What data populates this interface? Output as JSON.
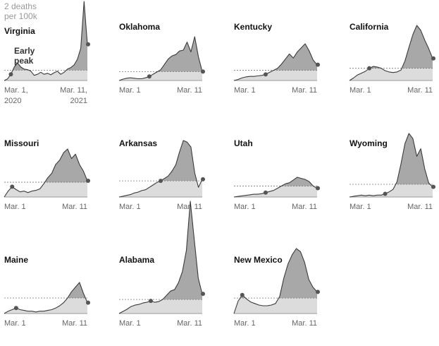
{
  "chart_data": {
    "type": "area",
    "annotations": {
      "threshold_label": [
        "2 deaths",
        "per 100k"
      ],
      "early_peak_label": [
        "Early",
        "peak"
      ]
    },
    "colors": {
      "area": "#dcdcdc",
      "above_threshold": "#a8a8a8",
      "line": "#3a3a3a",
      "marker": "#555555",
      "threshold": "#777777",
      "baseline": "#9a9a9a"
    },
    "panels": [
      {
        "state": "Virginia",
        "x_start": "Mar. 1, 2020",
        "x_end": "Mar. 11, 2021",
        "x_start_label": [
          "Mar. 1,",
          "2020"
        ],
        "x_end_label": [
          "Mar. 11,",
          "2021"
        ],
        "threshold": 2,
        "early_peak_index": 2,
        "values": [
          0,
          0.3,
          1.2,
          2.6,
          3.4,
          2.6,
          2.2,
          2.1,
          1.8,
          1.0,
          1.2,
          1.6,
          1.2,
          1.4,
          1.1,
          1.5,
          1.8,
          1.2,
          1.6,
          2.2,
          2.5,
          3.0,
          4.1,
          6.2,
          15.3,
          7.0
        ]
      },
      {
        "state": "Oklahoma",
        "x_start": "Mar. 1",
        "x_end": "Mar. 11",
        "x_start_label": [
          "Mar. 1"
        ],
        "x_end_label": [
          "Mar. 11"
        ],
        "threshold": 2,
        "early_peak_index": 8,
        "values": [
          0,
          0.3,
          0.5,
          0.6,
          0.5,
          0.4,
          0.4,
          0.6,
          0.9,
          1.4,
          1.9,
          2.4,
          3.6,
          4.8,
          5.5,
          5.8,
          6.6,
          6.8,
          8.6,
          6.4,
          9.8,
          5.3,
          2.0
        ]
      },
      {
        "state": "Kentucky",
        "x_start": "Mar. 1",
        "x_end": "Mar. 11",
        "x_start_label": [
          "Mar. 1"
        ],
        "x_end_label": [
          "Mar. 11"
        ],
        "threshold": 2,
        "early_peak_index": 8,
        "values": [
          0,
          0.2,
          0.5,
          0.7,
          0.8,
          0.8,
          0.9,
          1.0,
          1.2,
          1.6,
          2.0,
          2.4,
          3.2,
          4.2,
          5.2,
          4.4,
          5.6,
          6.4,
          7.2,
          5.8,
          4.0,
          3.1
        ]
      },
      {
        "state": "California",
        "x_start": "Mar. 1",
        "x_end": "Mar. 11",
        "x_start_label": [
          "Mar. 1"
        ],
        "x_end_label": [
          "Mar. 11"
        ],
        "threshold": 2,
        "early_peak_index": 5,
        "values": [
          0,
          0.4,
          0.9,
          1.2,
          1.5,
          2.0,
          2.3,
          2.2,
          2.0,
          1.6,
          1.4,
          1.3,
          1.4,
          1.7,
          3.2,
          5.4,
          7.5,
          9.0,
          8.2,
          6.6,
          5.2,
          3.6
        ]
      },
      {
        "state": "Missouri",
        "x_start": "Mar. 1",
        "x_end": "Mar. 11",
        "x_start_label": [
          "Mar. 1"
        ],
        "x_end_label": [
          "Mar. 11"
        ],
        "threshold": 2,
        "early_peak_index": 2,
        "values": [
          0,
          0.8,
          1.4,
          1.0,
          0.7,
          0.8,
          0.6,
          0.8,
          0.9,
          1.1,
          1.8,
          2.6,
          3.2,
          4.4,
          5.0,
          6.0,
          6.5,
          5.2,
          5.8,
          4.4,
          3.5,
          2.2
        ]
      },
      {
        "state": "Arkansas",
        "x_start": "Mar. 1",
        "x_end": "Mar. 11",
        "x_start_label": [
          "Mar. 1"
        ],
        "x_end_label": [
          "Mar. 11"
        ],
        "threshold": 2,
        "early_peak_index": 11,
        "values": [
          0,
          0.1,
          0.2,
          0.3,
          0.5,
          0.6,
          0.8,
          0.9,
          1.2,
          1.5,
          1.8,
          2.0,
          2.3,
          2.6,
          3.2,
          4.0,
          5.6,
          7.0,
          6.8,
          6.2,
          3.0,
          1.2,
          2.2
        ]
      },
      {
        "state": "Utah",
        "x_start": "Mar. 1",
        "x_end": "Mar. 11",
        "x_start_label": [
          "Mar. 1"
        ],
        "x_end_label": [
          "Mar. 11"
        ],
        "threshold": 2,
        "early_peak_index": 8,
        "values": [
          0,
          0.1,
          0.2,
          0.3,
          0.4,
          0.5,
          0.5,
          0.6,
          0.8,
          1.0,
          1.2,
          1.6,
          2.0,
          2.4,
          2.6,
          3.1,
          3.6,
          3.4,
          3.2,
          2.8,
          2.0,
          1.6
        ]
      },
      {
        "state": "Wyoming",
        "x_start": "Mar. 1",
        "x_end": "Mar. 11",
        "x_start_label": [
          "Mar. 1"
        ],
        "x_end_label": [
          "Mar. 11"
        ],
        "threshold": 2,
        "early_peak_index": 9,
        "values": [
          0,
          0.1,
          0.2,
          0.3,
          0.2,
          0.3,
          0.2,
          0.3,
          0.3,
          0.5,
          0.8,
          1.2,
          2.4,
          5.2,
          8.4,
          10.0,
          9.2,
          6.4,
          7.6,
          4.4,
          2.2,
          1.6
        ]
      },
      {
        "state": "Maine",
        "x_start": "Mar. 1",
        "x_end": "Mar. 11",
        "x_start_label": [
          "Mar. 1"
        ],
        "x_end_label": [
          "Mar. 11"
        ],
        "threshold": 2,
        "early_peak_index": 3,
        "values": [
          0,
          0.3,
          0.5,
          0.7,
          0.5,
          0.4,
          0.3,
          0.3,
          0.2,
          0.3,
          0.3,
          0.4,
          0.5,
          0.7,
          1.0,
          1.4,
          2.0,
          2.8,
          3.4,
          4.0,
          2.6,
          1.4
        ]
      },
      {
        "state": "Alabama",
        "x_start": "Mar. 1",
        "x_end": "Mar. 11",
        "x_start_label": [
          "Mar. 1"
        ],
        "x_end_label": [
          "Mar. 11"
        ],
        "threshold": 2,
        "early_peak_index": 8,
        "values": [
          0,
          0.3,
          0.6,
          1.0,
          1.2,
          1.3,
          1.5,
          1.6,
          1.8,
          1.6,
          1.7,
          2.0,
          2.6,
          3.2,
          3.4,
          4.4,
          6.0,
          9.0,
          16.0,
          10.4,
          5.0,
          2.8
        ]
      },
      {
        "state": "New Mexico",
        "x_start": "Mar. 1",
        "x_end": "Mar. 11",
        "x_start_label": [
          "Mar. 1"
        ],
        "x_end_label": [
          "Mar. 11"
        ],
        "threshold": 2,
        "early_peak_index": 2,
        "values": [
          0,
          1.6,
          2.4,
          1.9,
          1.5,
          1.3,
          1.1,
          1.0,
          1.0,
          1.1,
          1.3,
          2.2,
          4.6,
          6.4,
          7.6,
          8.4,
          8.0,
          6.6,
          4.4,
          3.4,
          2.8
        ]
      }
    ]
  }
}
